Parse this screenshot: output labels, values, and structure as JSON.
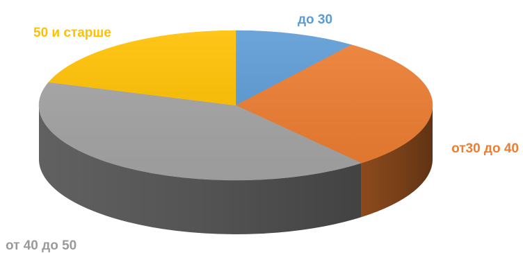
{
  "chart_data": {
    "type": "pie",
    "title": "",
    "legend": "none",
    "slices": [
      {
        "label": "до 30",
        "value": 10,
        "color": "#5B9BD5"
      },
      {
        "label": "от30 до 40",
        "value": 29,
        "color": "#ED7D31"
      },
      {
        "label": "от 40 до 50",
        "value": 41,
        "color": "#A5A5A5"
      },
      {
        "label": "50 и старше",
        "value": 20,
        "color": "#FFC000"
      }
    ]
  }
}
